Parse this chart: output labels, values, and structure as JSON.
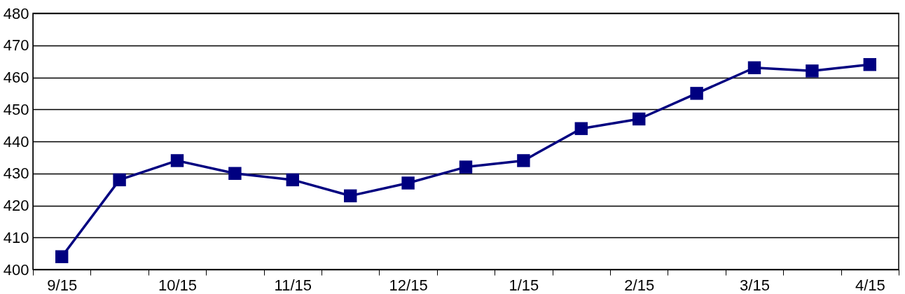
{
  "chart_data": {
    "type": "line",
    "categories": [
      "9/15",
      null,
      "10/15",
      null,
      "11/15",
      null,
      "12/15",
      null,
      "1/15",
      null,
      "2/15",
      null,
      "3/15",
      null,
      "4/15"
    ],
    "series": [
      {
        "color": "#000080",
        "values": [
          404,
          428,
          434,
          430,
          428,
          423,
          427,
          432,
          434,
          444,
          447,
          455,
          463,
          462,
          464
        ]
      }
    ],
    "ylim": [
      400,
      480
    ],
    "yticks": [
      400,
      410,
      420,
      430,
      440,
      450,
      460,
      470,
      480
    ],
    "grid": "y",
    "legend": false,
    "marker": "square",
    "line_style": "solid"
  }
}
